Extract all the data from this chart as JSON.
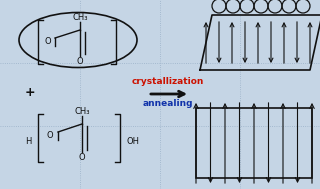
{
  "bg_color": "#c5d5e5",
  "grid_color": "#9ab0c8",
  "black": "#111111",
  "red": "#cc1100",
  "blue": "#1133aa",
  "crystallization": "crystallization",
  "annealing": "annealing",
  "ch3": "CH₃",
  "o": "O",
  "h": "H",
  "oh": "OH",
  "plus": "+",
  "fs": 6.0
}
